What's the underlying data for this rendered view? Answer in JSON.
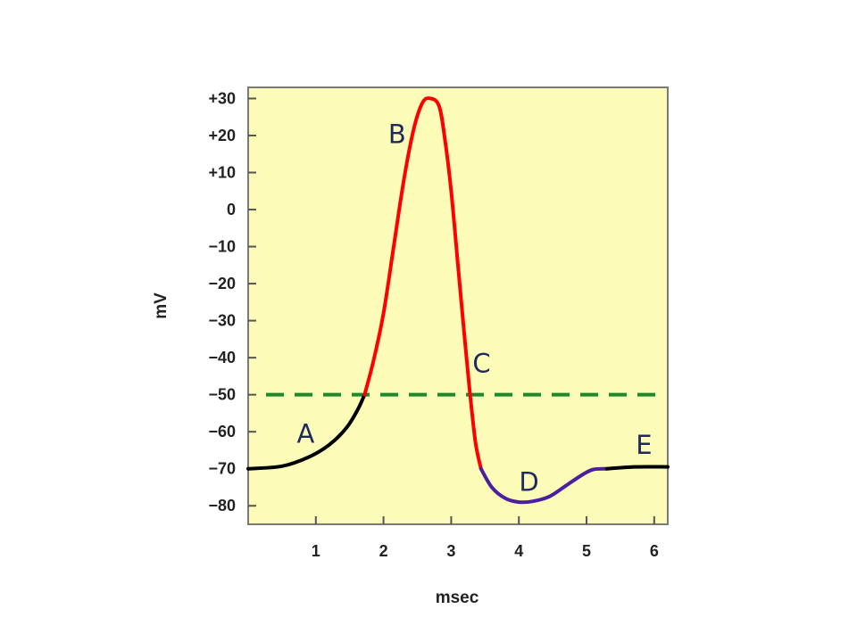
{
  "chart_data": {
    "type": "line",
    "title": "",
    "xlabel": "msec",
    "ylabel": "mV",
    "xlim": [
      0,
      6.2
    ],
    "ylim": [
      -85,
      33
    ],
    "x_ticks": [
      1,
      2,
      3,
      4,
      5,
      6
    ],
    "y_ticks": [
      30,
      20,
      10,
      0,
      -10,
      -20,
      -30,
      -40,
      -50,
      -60,
      -70,
      -80
    ],
    "y_tick_labels": [
      "+30",
      "+20",
      "+10",
      "0",
      "−10",
      "−20",
      "−30",
      "−40",
      "−50",
      "−60",
      "−70",
      "−80"
    ],
    "grid": false,
    "plot_background": "#fdfbb8",
    "threshold": {
      "y": -50,
      "color": "#1a8a2a",
      "style": "dashed"
    },
    "series": [
      {
        "color": "#000000",
        "points": [
          [
            0,
            -70
          ],
          [
            0.5,
            -69.3
          ],
          [
            0.9,
            -66.8
          ],
          [
            1.2,
            -63.5
          ],
          [
            1.45,
            -59
          ],
          [
            1.62,
            -54
          ],
          [
            1.72,
            -50
          ]
        ]
      },
      {
        "color": "#ff0000",
        "points": [
          [
            1.72,
            -50
          ],
          [
            1.85,
            -41
          ],
          [
            2.0,
            -28
          ],
          [
            2.15,
            -10
          ],
          [
            2.3,
            8
          ],
          [
            2.45,
            22
          ],
          [
            2.58,
            29
          ],
          [
            2.7,
            30
          ],
          [
            2.82,
            28
          ],
          [
            2.9,
            20
          ],
          [
            3.0,
            5
          ],
          [
            3.1,
            -15
          ],
          [
            3.2,
            -35
          ],
          [
            3.28,
            -50
          ],
          [
            3.36,
            -63
          ],
          [
            3.44,
            -70
          ]
        ]
      },
      {
        "color": "#4b1fa0",
        "points": [
          [
            3.44,
            -70
          ],
          [
            3.6,
            -75
          ],
          [
            3.8,
            -78
          ],
          [
            4.0,
            -79
          ],
          [
            4.2,
            -78.8
          ],
          [
            4.45,
            -77.5
          ],
          [
            4.7,
            -74.5
          ],
          [
            4.95,
            -71.5
          ],
          [
            5.1,
            -70.2
          ],
          [
            5.3,
            -70
          ]
        ]
      },
      {
        "color": "#000000",
        "points": [
          [
            5.3,
            -70
          ],
          [
            5.7,
            -69.5
          ],
          [
            6.2,
            -69.5
          ]
        ]
      }
    ],
    "annotations": [
      {
        "text": "A",
        "x": 0.85,
        "y": -63
      },
      {
        "text": "B",
        "x": 2.2,
        "y": 18
      },
      {
        "text": "C",
        "x": 3.45,
        "y": -44
      },
      {
        "text": "D",
        "x": 4.15,
        "y": -76
      },
      {
        "text": "E",
        "x": 5.85,
        "y": -66
      }
    ]
  }
}
